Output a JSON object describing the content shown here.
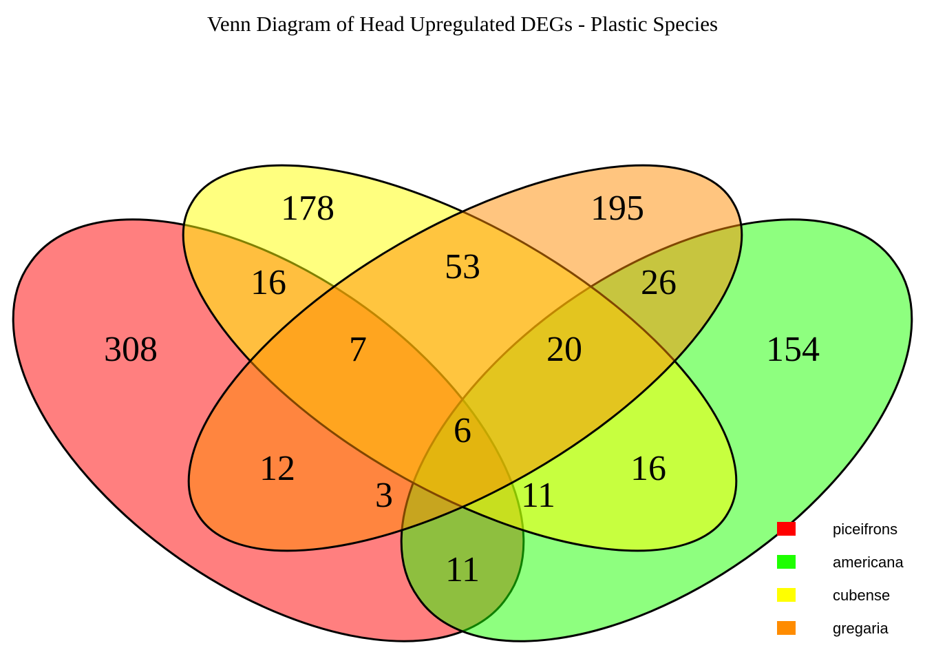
{
  "title": "Venn Diagram of Head Upregulated DEGs - Plastic Species",
  "sets": [
    {
      "name": "piceifrons",
      "color": "#FF0000"
    },
    {
      "name": "americana",
      "color": "#1EFF00"
    },
    {
      "name": "cubense",
      "color": "#FFFF00"
    },
    {
      "name": "gregaria",
      "color": "#FF8C00"
    }
  ],
  "fill_opacity": 0.5,
  "regions": {
    "piceifrons_only": "308",
    "cubense_only": "178",
    "gregaria_only": "195",
    "americana_only": "154",
    "piceifrons_cubense": "16",
    "cubense_gregaria": "53",
    "gregaria_americana": "26",
    "piceifrons_cubense_gregaria": "7",
    "cubense_gregaria_americana": "20",
    "piceifrons_gregaria": "12",
    "cubense_americana": "16",
    "all_four": "6",
    "piceifrons_gregaria_americana": "3",
    "piceifrons_cubense_americana": "11",
    "piceifrons_americana": "11"
  }
}
